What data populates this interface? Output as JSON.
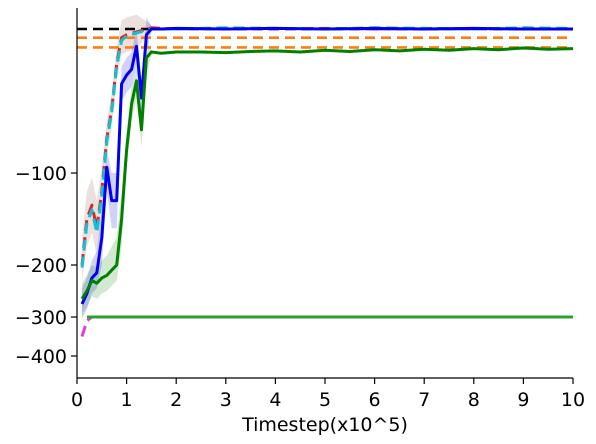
{
  "chart_data": {
    "type": "line",
    "title": "",
    "xlabel": "Timestep(x10^5)",
    "ylabel": "",
    "xlim": [
      0,
      10
    ],
    "yscale": "piecewise",
    "y_ticks": [
      -100,
      -200,
      -300,
      -400
    ],
    "x_ticks": [
      0,
      1,
      2,
      3,
      4,
      5,
      6,
      7,
      8,
      9,
      10
    ],
    "y_tick_labels": [
      "−100",
      "−200",
      "−300",
      "−400"
    ],
    "x_tick_labels": [
      "0",
      "1",
      "2",
      "3",
      "4",
      "5",
      "6",
      "7",
      "8",
      "9",
      "10"
    ],
    "grid": false,
    "reference_lines": [
      {
        "y": 150,
        "color": "#000000",
        "style": "dashed"
      },
      {
        "y": 135,
        "color": "#ff7f0e",
        "style": "dashed"
      },
      {
        "y": 118,
        "color": "#ff7f0e",
        "style": "dashed"
      }
    ],
    "series": [
      {
        "color": "#d62728",
        "style": "dashed",
        "x": [
          0.1,
          0.2,
          0.3,
          0.4,
          0.5,
          0.6,
          0.7,
          0.8,
          0.9,
          1.0,
          1.2,
          1.5,
          2,
          3,
          4,
          5,
          6,
          7,
          8,
          9,
          10
        ],
        "y": [
          -200,
          -150,
          -135,
          -160,
          -120,
          -40,
          10,
          90,
          135,
          140,
          145,
          152,
          150,
          151,
          150,
          151,
          150,
          151,
          150,
          151,
          150
        ]
      },
      {
        "color": "#17becf",
        "style": "dashed",
        "x": [
          0.1,
          0.2,
          0.3,
          0.4,
          0.5,
          0.6,
          0.7,
          0.8,
          0.9,
          1.0,
          1.2,
          1.5,
          2,
          3,
          4,
          5,
          6,
          7,
          8,
          9,
          10
        ],
        "y": [
          -205,
          -155,
          -140,
          -165,
          -125,
          -45,
          5,
          85,
          130,
          138,
          143,
          150,
          150,
          152,
          151,
          150,
          152,
          151,
          150,
          152,
          151
        ]
      },
      {
        "color": "#0000ee",
        "style": "solid",
        "x": [
          0.1,
          0.2,
          0.3,
          0.4,
          0.5,
          0.6,
          0.7,
          0.8,
          0.9,
          1.0,
          1.1,
          1.2,
          1.3,
          1.4,
          1.5,
          1.7,
          2,
          3,
          4,
          5,
          6,
          7,
          8,
          9,
          10
        ],
        "y": [
          -275,
          -255,
          -225,
          -215,
          -170,
          -90,
          -130,
          -130,
          55,
          70,
          80,
          120,
          30,
          140,
          150,
          150,
          151,
          150,
          151,
          150,
          151,
          150,
          151,
          150,
          150
        ]
      },
      {
        "color": "#008000",
        "style": "solid",
        "x": [
          0.1,
          0.2,
          0.3,
          0.4,
          0.5,
          0.6,
          0.7,
          0.8,
          0.9,
          1.0,
          1.1,
          1.2,
          1.3,
          1.4,
          1.5,
          1.7,
          2,
          2.5,
          3,
          3.5,
          4,
          4.5,
          5,
          5.5,
          6,
          6.5,
          7,
          7.5,
          8,
          8.5,
          9,
          9.5,
          10
        ],
        "y": [
          -265,
          -250,
          -230,
          -235,
          -225,
          -220,
          -210,
          -200,
          -150,
          -60,
          20,
          60,
          -25,
          100,
          110,
          108,
          110,
          110,
          109,
          111,
          112,
          110,
          113,
          111,
          114,
          112,
          115,
          113,
          116,
          114,
          117,
          115,
          116
        ]
      },
      {
        "color": "#e040e0",
        "style": "dashed",
        "x": [
          0.1,
          0.2,
          0.3,
          0.5,
          1,
          2,
          3,
          4,
          5,
          6,
          7,
          8,
          9,
          10
        ],
        "y": [
          -350,
          -310,
          -300,
          -300,
          -300,
          -300,
          -300,
          -300,
          -300,
          -300,
          -300,
          -300,
          -300,
          -300
        ]
      },
      {
        "color": "#2ca02c",
        "style": "solid",
        "x": [
          0.2,
          0.5,
          1,
          2,
          3,
          4,
          5,
          6,
          7,
          8,
          9,
          10
        ],
        "y": [
          -300,
          -300,
          -300,
          -300,
          -300,
          -300,
          -300,
          -300,
          -300,
          -300,
          -300,
          -300
        ]
      }
    ]
  }
}
